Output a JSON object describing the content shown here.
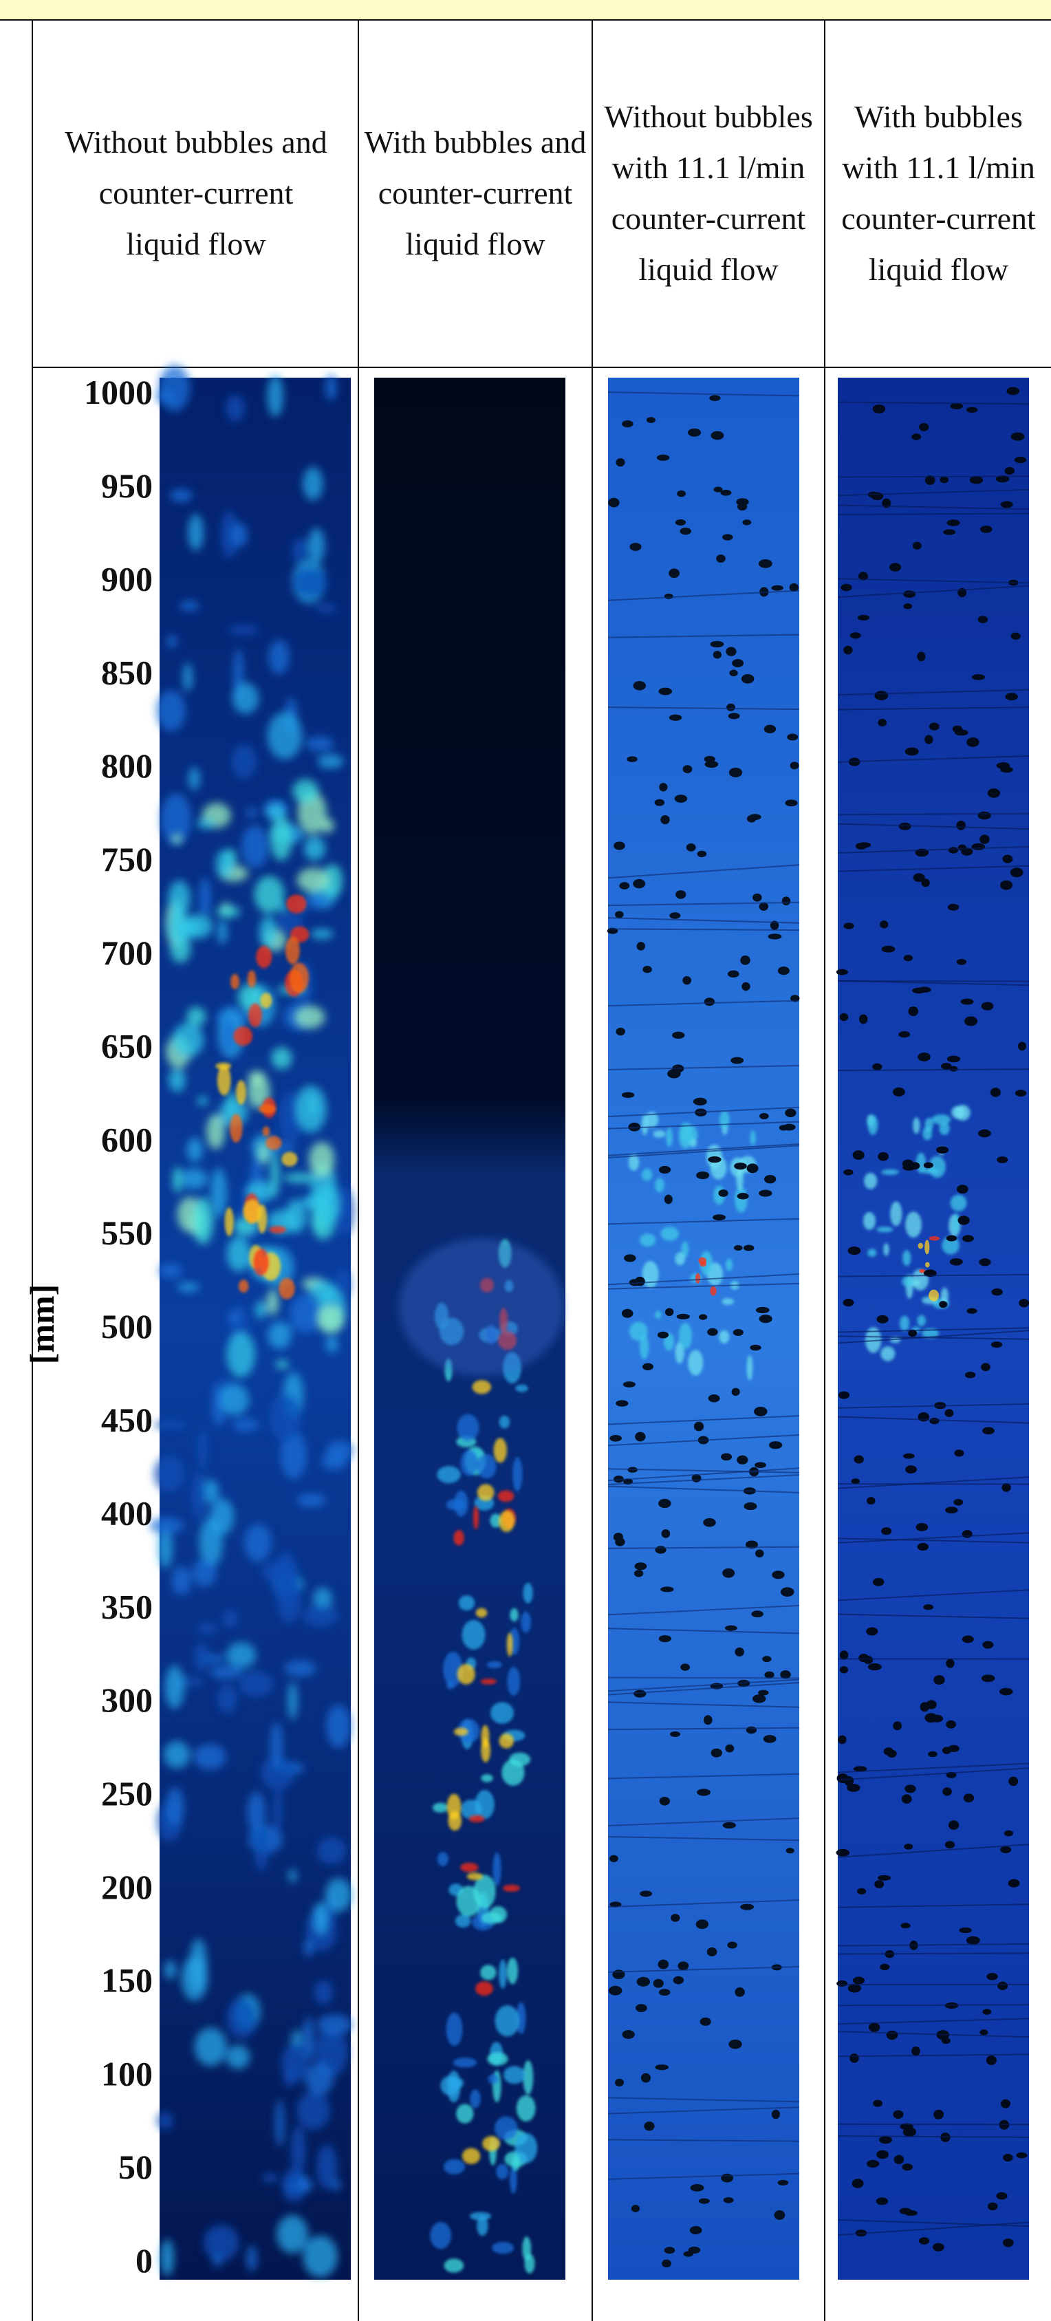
{
  "table": {
    "headers": [
      "Without bubbles and counter-current liquid flow",
      "With bubbles and counter-current liquid flow",
      "Without bubbles with 11.1 l/min counter-current liquid flow",
      "With bubbles with 11.1 l/min counter-current liquid flow"
    ]
  },
  "axis": {
    "label": "[mm]",
    "lim": [
      0,
      1000
    ],
    "ticks": [
      0,
      50,
      100,
      150,
      200,
      250,
      300,
      350,
      400,
      450,
      500,
      550,
      600,
      650,
      700,
      750,
      800,
      850,
      900,
      950,
      1000
    ]
  }
}
